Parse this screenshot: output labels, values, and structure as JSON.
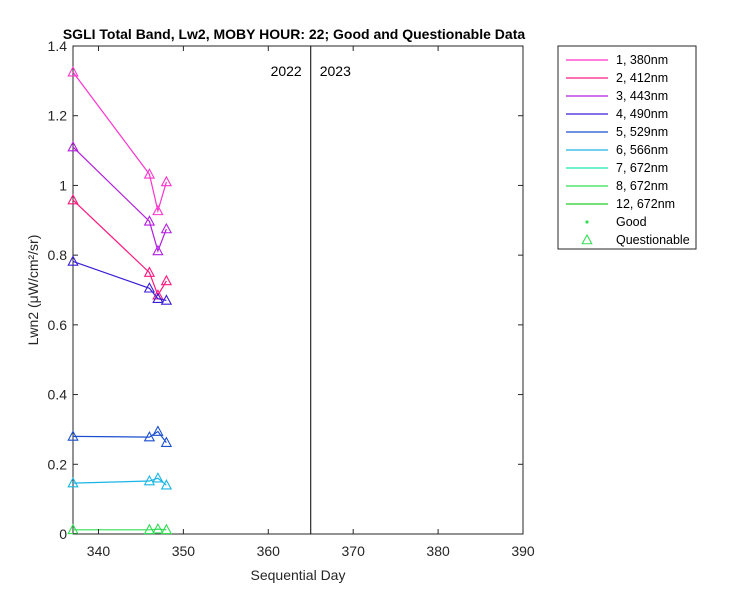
{
  "chart_data": {
    "type": "line",
    "title": "SGLI Total Band, Lw2, MOBY HOUR: 22;  Good and Questionable Data",
    "xlabel": "Sequential Day",
    "ylabel": "Lwn2 (μW/cm²/sr)",
    "xlim": [
      337,
      390
    ],
    "ylim": [
      0,
      1.4
    ],
    "xticks": [
      340,
      350,
      360,
      370,
      380,
      390
    ],
    "yticks": [
      0,
      0.2,
      0.4,
      0.6,
      0.8,
      1,
      1.2,
      1.4
    ],
    "xtick_labels": [
      "340",
      "350",
      "360",
      "370",
      "380",
      "390"
    ],
    "ytick_labels": [
      "0",
      "0.2",
      "0.4",
      "0.6",
      "0.8",
      "1",
      "1.2",
      "1.4"
    ],
    "year_divider_x": 365,
    "year_labels": {
      "left": "2022",
      "right": "2023"
    },
    "grid": false,
    "legend_position": "outside-right",
    "series": [
      {
        "name": "1, 380nm",
        "color": "#ff33cc",
        "x": [
          337,
          346,
          347,
          348
        ],
        "y": [
          1.325,
          1.032,
          0.927,
          1.01
        ]
      },
      {
        "name": "2, 412nm",
        "color": "#ff1a80",
        "x": [
          337,
          346,
          347,
          348
        ],
        "y": [
          0.958,
          0.75,
          0.685,
          0.726
        ]
      },
      {
        "name": "3, 443nm",
        "color": "#b31ee0",
        "x": [
          337,
          346,
          347,
          348
        ],
        "y": [
          1.11,
          0.897,
          0.812,
          0.875
        ]
      },
      {
        "name": "4, 490nm",
        "color": "#3a1ed6",
        "x": [
          337,
          346,
          347,
          348
        ],
        "y": [
          0.782,
          0.705,
          0.675,
          0.67
        ]
      },
      {
        "name": "5, 529nm",
        "color": "#1a4fcf",
        "x": [
          337,
          346,
          347,
          348
        ],
        "y": [
          0.28,
          0.278,
          0.294,
          0.262
        ]
      },
      {
        "name": "6, 566nm",
        "color": "#19b5e6",
        "x": [
          337,
          346,
          347,
          348
        ],
        "y": [
          0.146,
          0.152,
          0.16,
          0.14
        ]
      },
      {
        "name": "7, 672nm",
        "color": "#19e6b0",
        "x": [],
        "y": []
      },
      {
        "name": "8, 672nm",
        "color": "#33dd55",
        "x": [
          337,
          346,
          347,
          348
        ],
        "y": [
          0.012,
          0.012,
          0.014,
          0.012
        ]
      },
      {
        "name": "12, 672nm",
        "color": "#22cc22",
        "x": [],
        "y": []
      }
    ],
    "markers": [
      {
        "name": "Good",
        "symbol": "dot",
        "color": "#33dd55"
      },
      {
        "name": "Questionable",
        "symbol": "triangle",
        "color": "#33dd55"
      }
    ]
  }
}
